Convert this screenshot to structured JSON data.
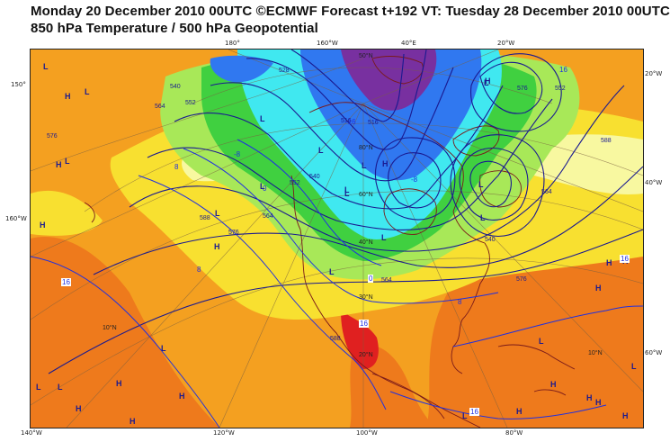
{
  "title": {
    "line1": "Monday 20 December 2010 00UTC ©ECMWF Forecast t+192 VT: Tuesday 28 December 2010 00UTC",
    "line2": "850 hPa Temperature / 500 hPa Geopotential"
  },
  "axis_labels": {
    "top": [
      "180°",
      "160°W",
      "40°E",
      "20°W"
    ],
    "bottom": [
      "140°W",
      "120°W",
      "100°W",
      "80°W"
    ],
    "left": [
      "150°",
      "160°W"
    ],
    "right": [
      "20°W",
      "40°W",
      "60°W"
    ]
  },
  "lat_labels": [
    "80°N",
    "60°N",
    "50°N",
    "40°N",
    "30°N",
    "20°N",
    "10°N",
    "10°N"
  ],
  "contour_labels": [
    "564",
    "552",
    "540",
    "576",
    "588",
    "528",
    "516",
    "552",
    "540",
    "564",
    "576",
    "588",
    "576",
    "564",
    "552",
    "540",
    "576",
    "564",
    "588",
    "516"
  ],
  "temperature_labels": [
    "8",
    "0",
    "-8",
    "-16",
    "16",
    "16",
    "16",
    "16",
    "8",
    "0",
    "8",
    "-8",
    "16"
  ],
  "pressure_marks": {
    "high": "H",
    "low": "L"
  },
  "colors": {
    "warm_orange": "#f4a020",
    "hot_orange": "#ee7a1c",
    "red": "#e02020",
    "yellow": "#f8e030",
    "pale_yellow": "#f8f8a0",
    "green": "#40d040",
    "light_green": "#a8e858",
    "cyan": "#40e8f0",
    "blue": "#3078f0",
    "purple": "#7830a0",
    "contour": "#1a1a90",
    "coast": "#7a1a1a"
  }
}
